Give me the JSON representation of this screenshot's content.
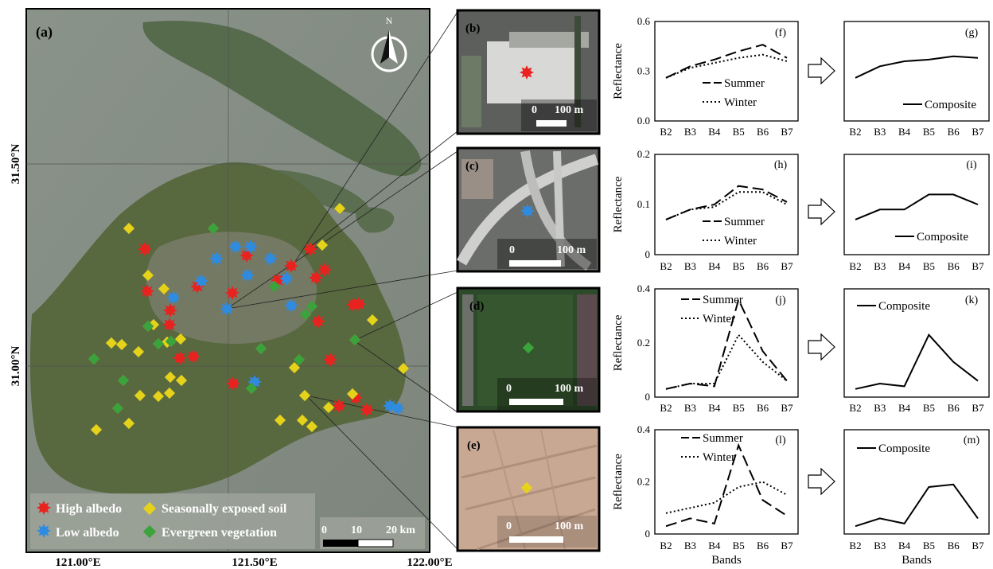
{
  "map": {
    "panel_label": "(a)",
    "north_label": "N",
    "lat_labels": [
      "31.50°N",
      "31.00°N"
    ],
    "lon_labels": [
      "121.00°E",
      "121.50°E",
      "122.00°E"
    ],
    "scale_labels": [
      "0",
      "10",
      "20 km"
    ],
    "legend": [
      {
        "label": "High albedo",
        "color": "#e8231f",
        "icon": "red-star-icon"
      },
      {
        "label": "Low albedo",
        "color": "#2f8be0",
        "icon": "blue-star-icon"
      },
      {
        "label": "Seasonally exposed soil",
        "color": "#e5d21b",
        "icon": "yellow-diamond-icon"
      },
      {
        "label": "Evergreen vegetation",
        "color": "#3ba33b",
        "icon": "green-diamond-icon"
      }
    ]
  },
  "insets": [
    {
      "label": "(b)",
      "scale_start": "0",
      "scale_end": "100 m",
      "marker": "red-star"
    },
    {
      "label": "(c)",
      "scale_start": "0",
      "scale_end": "100 m",
      "marker": "blue-star"
    },
    {
      "label": "(d)",
      "scale_start": "0",
      "scale_end": "100 m",
      "marker": "green-diamond"
    },
    {
      "label": "(e)",
      "scale_start": "0",
      "scale_end": "100 m",
      "marker": "yellow-diamond"
    }
  ],
  "chart_data": [
    {
      "type": "line",
      "panel": "(f)",
      "categories": [
        "B2",
        "B3",
        "B4",
        "B5",
        "B6",
        "B7"
      ],
      "ylabel": "Reflectance",
      "yticks": [
        "0.0",
        "0.3",
        "0.6"
      ],
      "ylim": [
        0,
        0.6
      ],
      "series": [
        {
          "name": "Summer",
          "style": "dashed",
          "values": [
            0.26,
            0.33,
            0.37,
            0.42,
            0.46,
            0.38
          ]
        },
        {
          "name": "Winter",
          "style": "dotted",
          "values": [
            0.26,
            0.32,
            0.35,
            0.38,
            0.4,
            0.36
          ]
        }
      ]
    },
    {
      "type": "line",
      "panel": "(g)",
      "categories": [
        "B2",
        "B3",
        "B4",
        "B5",
        "B6",
        "B7"
      ],
      "ylim": [
        0,
        0.6
      ],
      "series": [
        {
          "name": "Composite",
          "style": "solid",
          "values": [
            0.26,
            0.33,
            0.36,
            0.37,
            0.39,
            0.38
          ]
        }
      ]
    },
    {
      "type": "line",
      "panel": "(h)",
      "categories": [
        "B2",
        "B3",
        "B4",
        "B5",
        "B6",
        "B7"
      ],
      "ylabel": "Reflectance",
      "yticks": [
        "0",
        "0.1",
        "0.2"
      ],
      "ylim": [
        0,
        0.2
      ],
      "series": [
        {
          "name": "Summer",
          "style": "dashed",
          "values": [
            0.07,
            0.09,
            0.1,
            0.137,
            0.13,
            0.105
          ]
        },
        {
          "name": "Winter",
          "style": "dotted",
          "values": [
            0.07,
            0.09,
            0.095,
            0.125,
            0.125,
            0.1
          ]
        }
      ]
    },
    {
      "type": "line",
      "panel": "(i)",
      "categories": [
        "B2",
        "B3",
        "B4",
        "B5",
        "B6",
        "B7"
      ],
      "ylim": [
        0,
        0.2
      ],
      "series": [
        {
          "name": "Composite",
          "style": "solid",
          "values": [
            0.07,
            0.09,
            0.09,
            0.12,
            0.12,
            0.1
          ]
        }
      ]
    },
    {
      "type": "line",
      "panel": "(j)",
      "categories": [
        "B2",
        "B3",
        "B4",
        "B5",
        "B6",
        "B7"
      ],
      "ylabel": "Reflectance",
      "yticks": [
        "0",
        "0.2",
        "0.4"
      ],
      "ylim": [
        0,
        0.4
      ],
      "series": [
        {
          "name": "Summer",
          "style": "dashed",
          "values": [
            0.03,
            0.05,
            0.04,
            0.36,
            0.17,
            0.06
          ]
        },
        {
          "name": "Winter",
          "style": "dotted",
          "values": [
            0.03,
            0.05,
            0.05,
            0.23,
            0.13,
            0.06
          ]
        }
      ]
    },
    {
      "type": "line",
      "panel": "(k)",
      "categories": [
        "B2",
        "B3",
        "B4",
        "B5",
        "B6",
        "B7"
      ],
      "ylim": [
        0,
        0.4
      ],
      "series": [
        {
          "name": "Composite",
          "style": "solid",
          "values": [
            0.03,
            0.05,
            0.04,
            0.23,
            0.13,
            0.06
          ]
        }
      ]
    },
    {
      "type": "line",
      "panel": "(l)",
      "categories": [
        "B2",
        "B3",
        "B4",
        "B5",
        "B6",
        "B7"
      ],
      "ylabel": "Reflectance",
      "xlabel": "Bands",
      "yticks": [
        "0",
        "0.2",
        "0.4"
      ],
      "ylim": [
        0,
        0.4
      ],
      "series": [
        {
          "name": "Summer",
          "style": "dashed",
          "values": [
            0.03,
            0.06,
            0.04,
            0.34,
            0.13,
            0.07
          ]
        },
        {
          "name": "Winter",
          "style": "dotted",
          "values": [
            0.08,
            0.1,
            0.12,
            0.18,
            0.2,
            0.15
          ]
        }
      ]
    },
    {
      "type": "line",
      "panel": "(m)",
      "categories": [
        "B2",
        "B3",
        "B4",
        "B5",
        "B6",
        "B7"
      ],
      "xlabel": "Bands",
      "ylim": [
        0,
        0.4
      ],
      "series": [
        {
          "name": "Composite",
          "style": "solid",
          "values": [
            0.03,
            0.06,
            0.04,
            0.18,
            0.19,
            0.06
          ]
        }
      ]
    }
  ]
}
